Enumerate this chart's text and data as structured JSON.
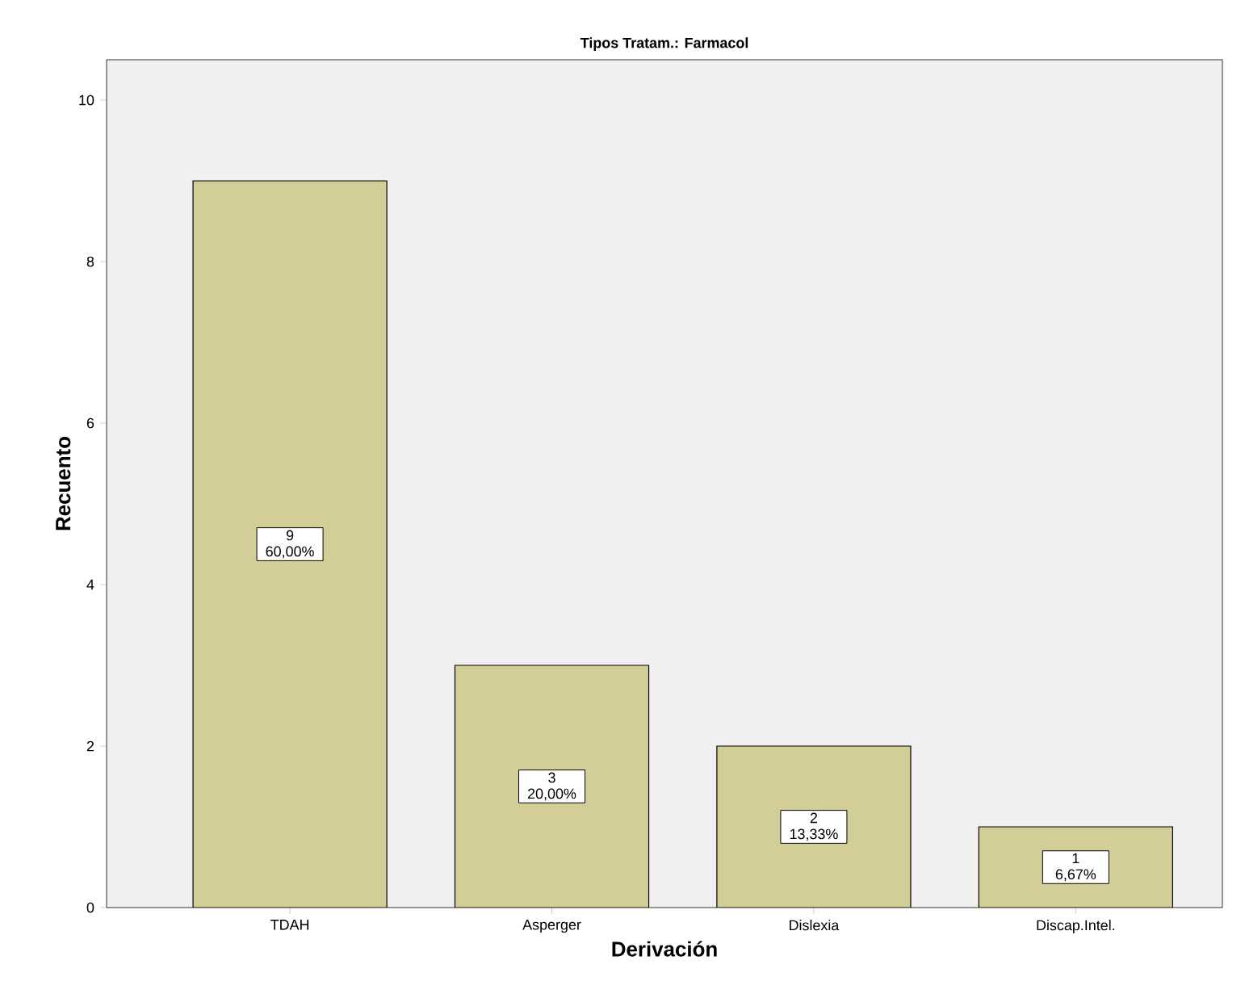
{
  "chart_data": {
    "type": "bar",
    "title": "Tipos Tratam.: Farmacol",
    "xlabel": "Derivación",
    "ylabel": "Recuento",
    "categories": [
      "TDAH",
      "Asperger",
      "Dislexia",
      "Discap.Intel."
    ],
    "values": [
      9,
      3,
      2,
      1
    ],
    "value_labels": [
      "9 60,00%",
      "3 20,00%",
      "2 13,33%",
      "1 6,67%"
    ],
    "color": "#d3ce97",
    "ylim": [
      0,
      10.5
    ],
    "yticks": [
      0,
      2,
      4,
      6,
      8,
      10
    ],
    "grid": false
  }
}
